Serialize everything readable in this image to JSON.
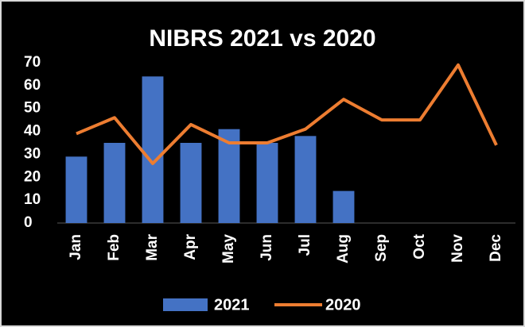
{
  "chart_data": {
    "type": "bar_line",
    "title": "NIBRS 2021 vs 2020",
    "categories": [
      "Jan",
      "Feb",
      "Mar",
      "Apr",
      "May",
      "Jun",
      "Jul",
      "Aug",
      "Sep",
      "Oct",
      "Nov",
      "Dec"
    ],
    "series": [
      {
        "name": "2021",
        "type": "bar",
        "color": "#4472c4",
        "values": [
          29,
          35,
          64,
          35,
          41,
          35,
          38,
          14,
          null,
          null,
          null,
          null
        ]
      },
      {
        "name": "2020",
        "type": "line",
        "color": "#ed7d31",
        "values": [
          39,
          46,
          26,
          43,
          35,
          35,
          41,
          54,
          45,
          45,
          69,
          34
        ]
      }
    ],
    "ylim": [
      0,
      70
    ],
    "yticks": [
      0,
      10,
      20,
      30,
      40,
      50,
      60,
      70
    ],
    "grid": false,
    "legend": "bottom"
  }
}
